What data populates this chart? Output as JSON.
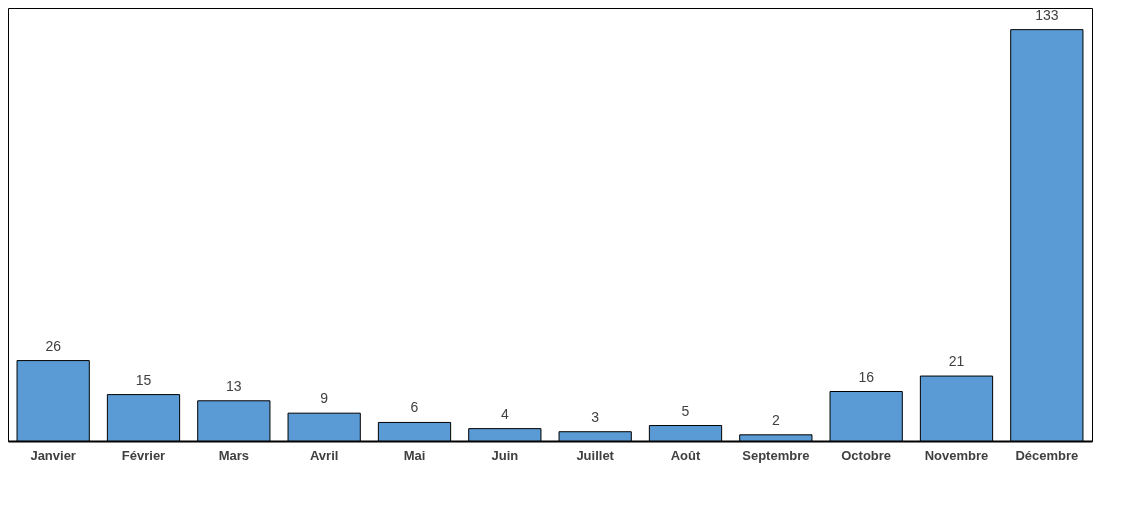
{
  "chart_data": {
    "type": "bar",
    "categories": [
      "Janvier",
      "Février",
      "Mars",
      "Avril",
      "Mai",
      "Juin",
      "Juillet",
      "Août",
      "Septembre",
      "Octobre",
      "Novembre",
      "Décembre"
    ],
    "values": [
      26,
      15,
      13,
      9,
      6,
      4,
      3,
      5,
      2,
      16,
      21,
      133
    ],
    "color": "#5b9bd5",
    "data_labels": true
  }
}
